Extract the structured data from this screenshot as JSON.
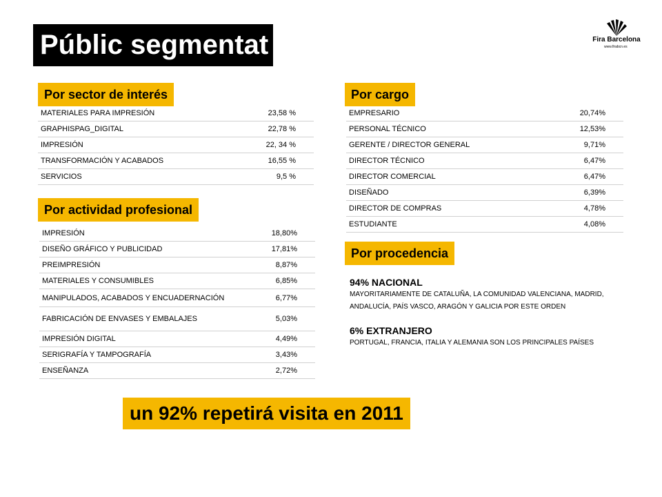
{
  "title": "Públic segmentat",
  "logo": {
    "name": "Fira Barcelona",
    "url": "www.firabcn.es"
  },
  "sector": {
    "label": "Por sector de interés",
    "rows": [
      {
        "name": "MATERIALES PARA IMPRESIÓN",
        "value": "23,58 %"
      },
      {
        "name": "GRAPHISPAG_DIGITAL",
        "value": "22,78 %"
      },
      {
        "name": "IMPRESIÓN",
        "value": "22, 34 %"
      },
      {
        "name": "TRANSFORMACIÓN Y ACABADOS",
        "value": "16,55 %"
      },
      {
        "name": "SERVICIOS",
        "value": "9,5 %"
      }
    ]
  },
  "activity": {
    "label": "Por actividad profesional",
    "rows": [
      {
        "name": "IMPRESIÓN",
        "value": "18,80%"
      },
      {
        "name": "DISEÑO GRÁFICO Y PUBLICIDAD",
        "value": "17,81%"
      },
      {
        "name": "PREIMPRESIÓN",
        "value": "8,87%"
      },
      {
        "name": "MATERIALES Y CONSUMIBLES",
        "value": "6,85%"
      },
      {
        "name": "MANIPULADOS, ACABADOS Y ENCUADERNACIÓN",
        "value": "6,77%"
      },
      {
        "name": "FABRICACIÓN DE ENVASES Y EMBALAJES",
        "value": "5,03%"
      },
      {
        "name": "IMPRESIÓN DIGITAL",
        "value": "4,49%"
      },
      {
        "name": "SERIGRAFÍA Y TAMPOGRAFÍA",
        "value": "3,43%"
      },
      {
        "name": "ENSEÑANZA",
        "value": "2,72%"
      }
    ]
  },
  "cargo": {
    "label": "Por cargo",
    "rows": [
      {
        "name": "EMPRESARIO",
        "value": "20,74%"
      },
      {
        "name": "PERSONAL TÉCNICO",
        "value": "12,53%"
      },
      {
        "name": "GERENTE / DIRECTOR GENERAL",
        "value": "9,71%"
      },
      {
        "name": "DIRECTOR TÉCNICO",
        "value": "6,47%"
      },
      {
        "name": "DIRECTOR COMERCIAL",
        "value": "6,47%"
      },
      {
        "name": "DISEÑADO",
        "value": "6,39%"
      },
      {
        "name": "DIRECTOR DE COMPRAS",
        "value": "4,78%"
      },
      {
        "name": "ESTUDIANTE",
        "value": "4,08%"
      }
    ]
  },
  "origin": {
    "label": "Por procedencia",
    "national_title": "94% NACIONAL",
    "national_text": "MAYORITARIAMENTE  DE CATALUÑA, LA COMUNIDAD VALENCIANA, MADRID, ANDALUCÍA, PAÍS VASCO, ARAGÓN Y GALICIA POR ESTE ORDEN",
    "foreign_title": "6% EXTRANJERO",
    "foreign_text": "PORTUGAL, FRANCIA, ITALIA Y ALEMANIA SON LOS PRINCIPALES PAÍSES"
  },
  "banner": "un 92% repetirá visita en 2011",
  "colors": {
    "accent": "#f5b700",
    "title_bg": "#000000"
  }
}
